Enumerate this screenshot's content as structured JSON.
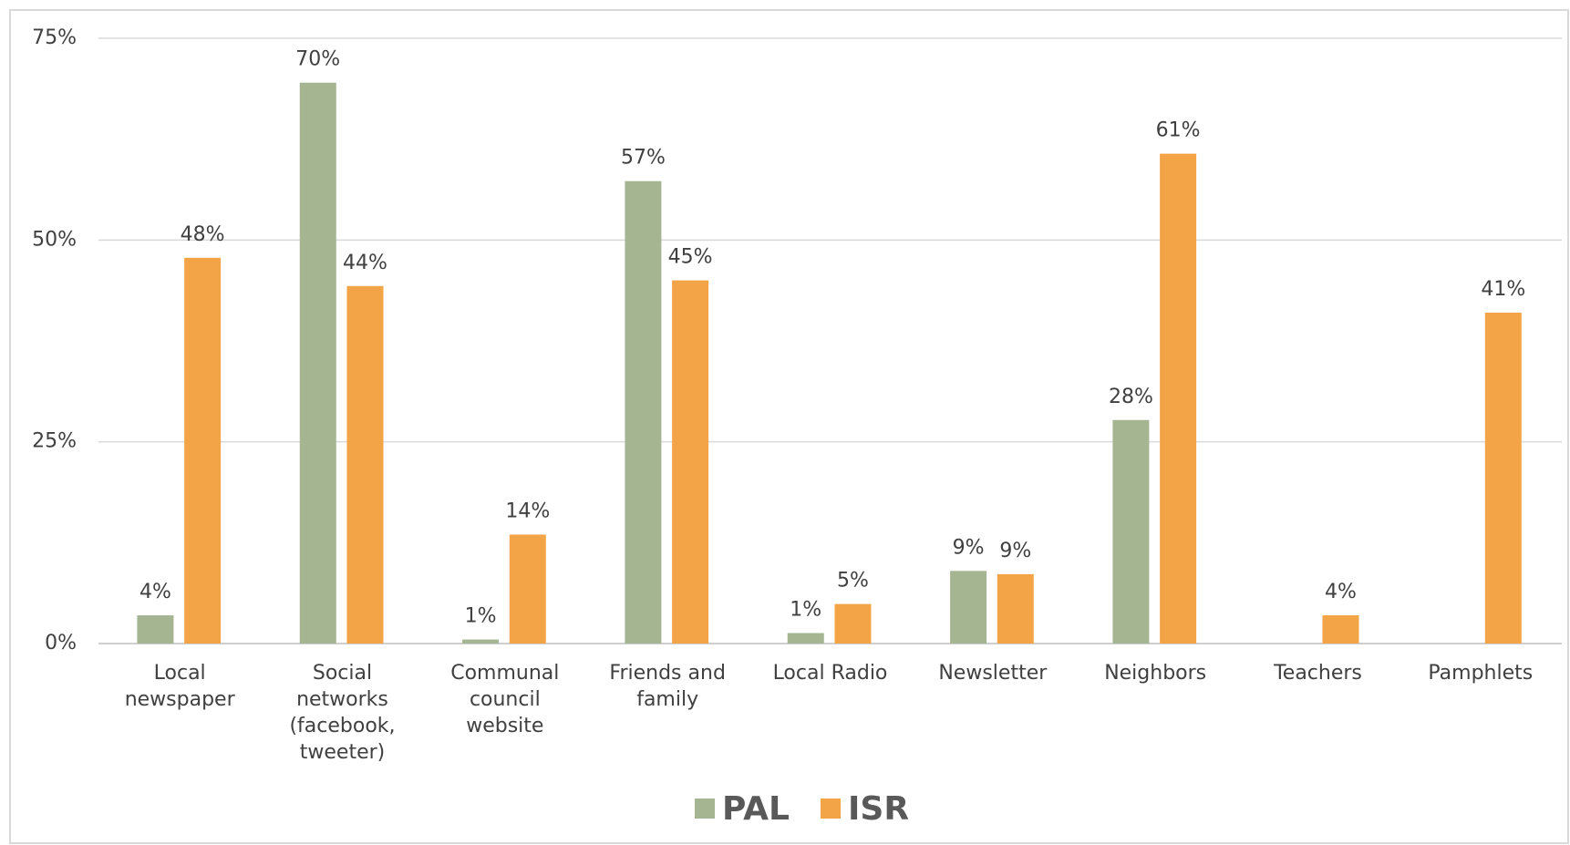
{
  "chart_data": {
    "type": "bar",
    "categories": [
      "Local newspaper",
      "Social networks (facebook, tweeter)",
      "Communal council website",
      "Friends and family",
      "Local Radio",
      "Newsletter",
      "Neighbors",
      "Teachers",
      "Pamphlets"
    ],
    "series": [
      {
        "name": "PAL",
        "color": "#a5b592",
        "values": [
          3.5,
          69.5,
          0.5,
          57.3,
          1.3,
          9,
          27.7,
          null,
          null
        ],
        "value_labels": [
          "4%",
          "70%",
          "1%",
          "57%",
          "1%",
          "9%",
          "28%",
          null,
          null
        ]
      },
      {
        "name": "ISR",
        "color": "#f3a447",
        "values": [
          47.8,
          44.3,
          13.5,
          45,
          4.9,
          8.6,
          60.7,
          3.5,
          41
        ],
        "value_labels": [
          "48%",
          "44%",
          "14%",
          "45%",
          "5%",
          "9%",
          "61%",
          "4%",
          "41%"
        ]
      }
    ],
    "ylim": [
      0,
      75
    ],
    "yticks": [
      {
        "value": 0,
        "label": "0%"
      },
      {
        "value": 25,
        "label": "25%"
      },
      {
        "value": 50,
        "label": "50%"
      },
      {
        "value": 75,
        "label": "75%"
      }
    ],
    "grid": true
  }
}
